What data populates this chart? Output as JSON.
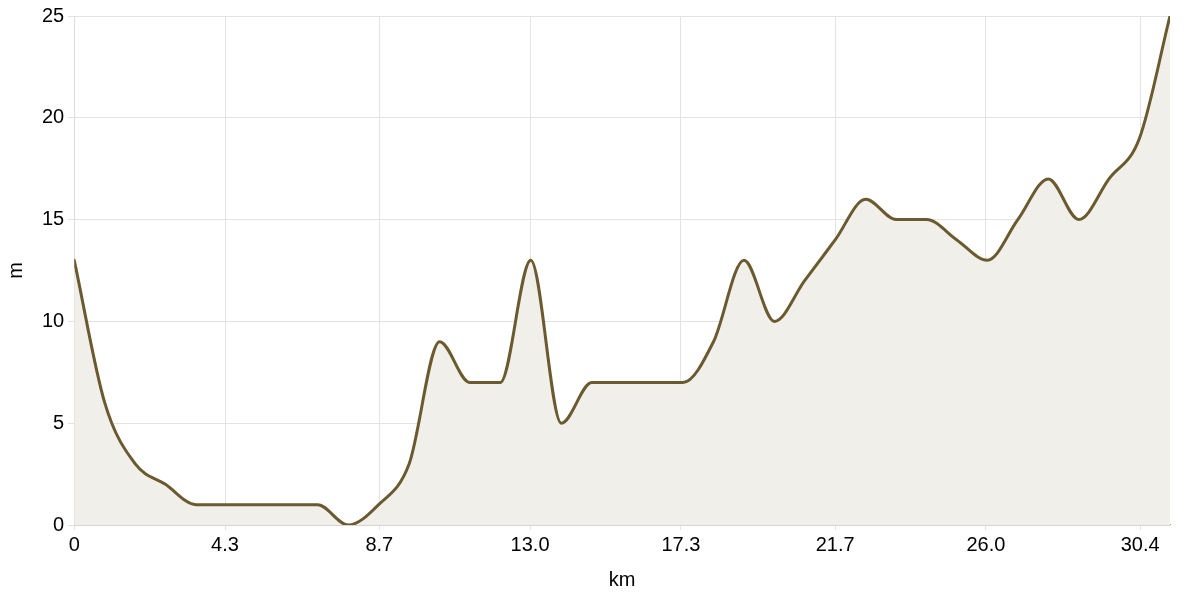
{
  "chart_data": {
    "type": "area",
    "xlabel": "km",
    "ylabel": "m",
    "x": [
      0,
      0.87,
      1.74,
      2.6,
      3.47,
      4.34,
      5.21,
      6.08,
      6.94,
      7.81,
      8.68,
      9.55,
      10.42,
      11.28,
      12.15,
      13.02,
      13.89,
      14.76,
      15.63,
      16.49,
      17.36,
      18.23,
      19.1,
      19.97,
      20.83,
      21.7,
      22.57,
      23.44,
      24.31,
      25.17,
      26.04,
      26.91,
      27.78,
      28.65,
      29.51,
      30.38,
      31.25
    ],
    "series": [
      {
        "color": "#6b5a2f",
        "values": [
          13,
          6,
          3,
          2,
          1,
          1,
          1,
          1,
          1,
          0,
          1,
          3,
          9,
          7,
          7,
          13,
          5,
          7,
          7,
          7,
          7,
          9,
          13,
          10,
          12,
          14,
          16,
          15,
          15,
          14,
          13,
          15,
          17,
          15,
          17,
          19,
          25
        ]
      }
    ],
    "xlim": [
      0,
      31.25
    ],
    "ylim": [
      0,
      25
    ],
    "xticks": [
      0,
      4.3,
      8.7,
      {
        "value": 13,
        "label": "13.0"
      },
      17.3,
      21.7,
      {
        "value": 26,
        "label": "26.0"
      },
      30.4
    ],
    "yticks": [
      0,
      5,
      10,
      15,
      20,
      25
    ],
    "grid": true
  }
}
